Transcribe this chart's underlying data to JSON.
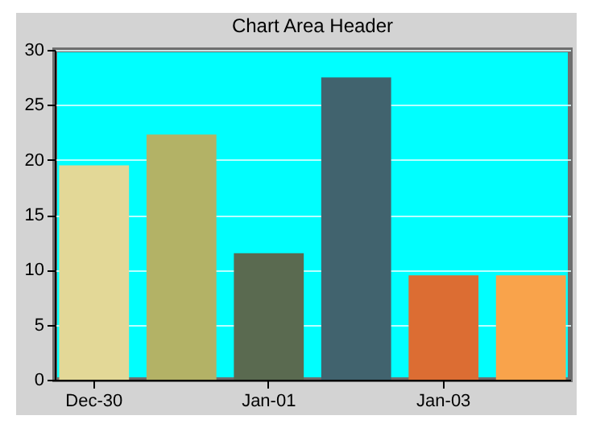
{
  "chart_data": {
    "type": "bar",
    "title": "Chart Area Header",
    "categories": [
      "Dec-30",
      null,
      "Jan-01",
      null,
      "Jan-03",
      null
    ],
    "values": [
      19.5,
      22.3,
      11.5,
      27.5,
      9.5,
      9.5
    ],
    "colors": [
      "#e3d897",
      "#b3b266",
      "#5a6a50",
      "#41636e",
      "#dc6d33",
      "#f9a34b"
    ],
    "ylim": [
      0,
      30
    ],
    "yticks": [
      0,
      5,
      10,
      15,
      20,
      25,
      30
    ],
    "grid": "y",
    "legend": false
  }
}
